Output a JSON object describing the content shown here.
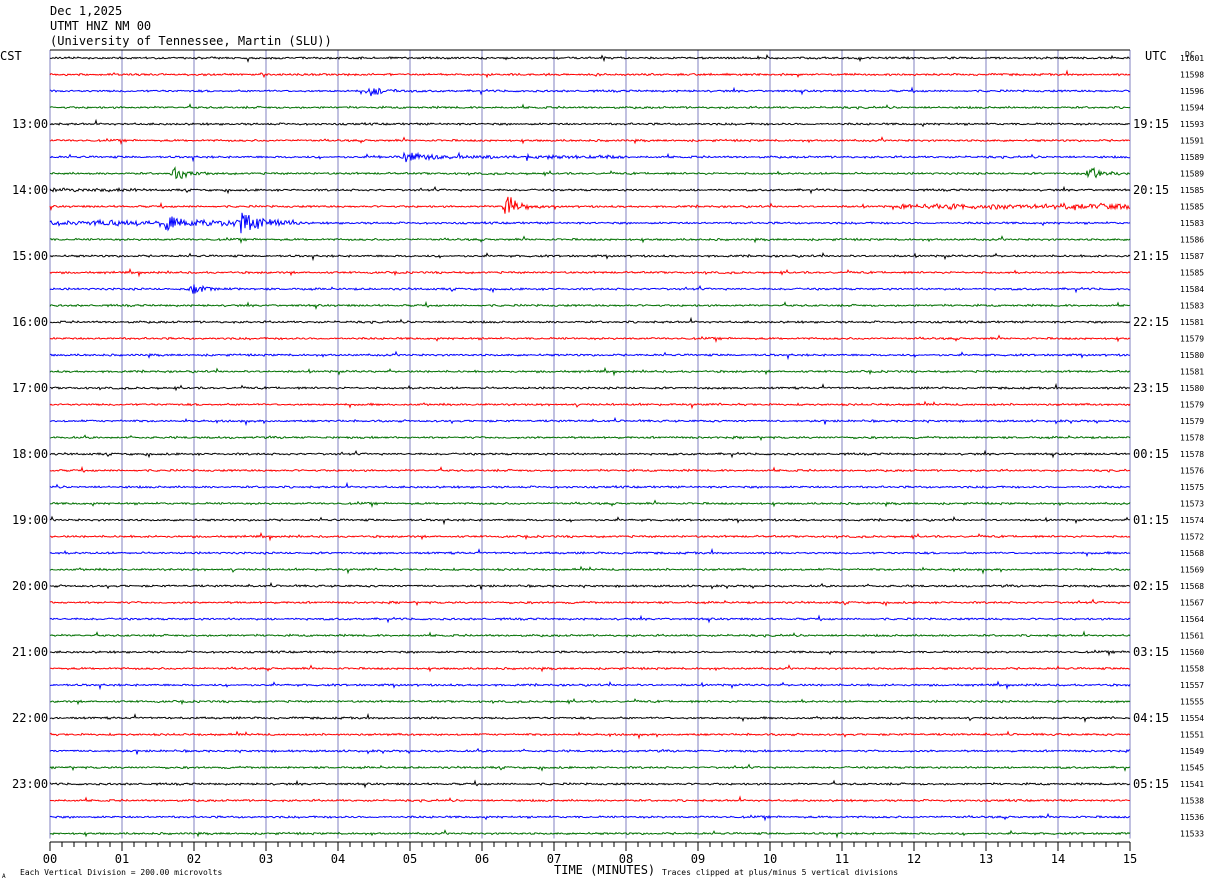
{
  "header": {
    "date": "Dec 1,2025",
    "station": "UTMT HNZ NM 00",
    "network": "(University of Tennessee, Martin (SLU))"
  },
  "labels": {
    "left_tz": "CST",
    "right_tz": "UTC",
    "dc": "DC",
    "xlabel": "TIME (MINUTES)",
    "scale_note": "Each Vertical Division =  200.00 microvolts",
    "clip_note": "Traces clipped at plus/minus 5 vertical divisions",
    "corner_mark": "A"
  },
  "chart_data": {
    "type": "line",
    "description_kind": "helicorder",
    "xlim": [
      0,
      15
    ],
    "x_ticks": [
      "00",
      "01",
      "02",
      "03",
      "04",
      "05",
      "06",
      "07",
      "08",
      "09",
      "10",
      "11",
      "12",
      "13",
      "14",
      "15"
    ],
    "trace_minutes": 15,
    "trace_colors": [
      "#000000",
      "#ff0000",
      "#0000ff",
      "#007000"
    ],
    "grid_color_vertical": "#8080c0",
    "left_hour_labels": [
      "13:00",
      "14:00",
      "15:00",
      "16:00",
      "17:00",
      "18:00",
      "19:00",
      "20:00",
      "21:00",
      "22:00",
      "23:00"
    ],
    "right_hour_labels": [
      "19:15",
      "20:15",
      "21:15",
      "22:15",
      "23:15",
      "00:15",
      "01:15",
      "02:15",
      "03:15",
      "04:15",
      "05:15"
    ],
    "dc_values": [
      "11601",
      "11598",
      "11596",
      "11594",
      "11593",
      "11591",
      "11589",
      "11589",
      "11585",
      "11585",
      "11583",
      "11586",
      "11587",
      "11585",
      "11584",
      "11583",
      "11581",
      "11579",
      "11580",
      "11581",
      "11580",
      "11579",
      "11579",
      "11578",
      "11578",
      "11576",
      "11575",
      "11573",
      "11574",
      "11572",
      "11568",
      "11569",
      "11568",
      "11567",
      "11564",
      "11561",
      "11560",
      "11558",
      "11557",
      "11555",
      "11554",
      "11551",
      "11549",
      "11545",
      "11541",
      "11538",
      "11536",
      "11533"
    ],
    "events": [
      {
        "trace": 2,
        "minute": 4.45,
        "amplitude": 0.25
      },
      {
        "trace": 6,
        "minute": 4.95,
        "amplitude": 0.45
      },
      {
        "trace": 7,
        "minute": 1.75,
        "amplitude": 0.35
      },
      {
        "trace": 7,
        "minute": 14.45,
        "amplitude": 0.4
      },
      {
        "trace": 9,
        "minute": 6.35,
        "amplitude": 0.7
      },
      {
        "trace": 10,
        "minute": 1.6,
        "amplitude": 0.5
      },
      {
        "trace": 10,
        "minute": 2.65,
        "amplitude": 0.75
      },
      {
        "trace": 14,
        "minute": 2.0,
        "amplitude": 0.3
      }
    ],
    "noisy_segments": [
      {
        "trace": 9,
        "start": 11.8,
        "end": 15.0,
        "amplitude": 0.25
      },
      {
        "trace": 10,
        "start": 0.0,
        "end": 3.5,
        "amplitude": 0.25
      },
      {
        "trace": 8,
        "start": 0.0,
        "end": 1.2,
        "amplitude": 0.12
      },
      {
        "trace": 6,
        "start": 4.5,
        "end": 8.0,
        "amplitude": 0.1
      }
    ]
  }
}
